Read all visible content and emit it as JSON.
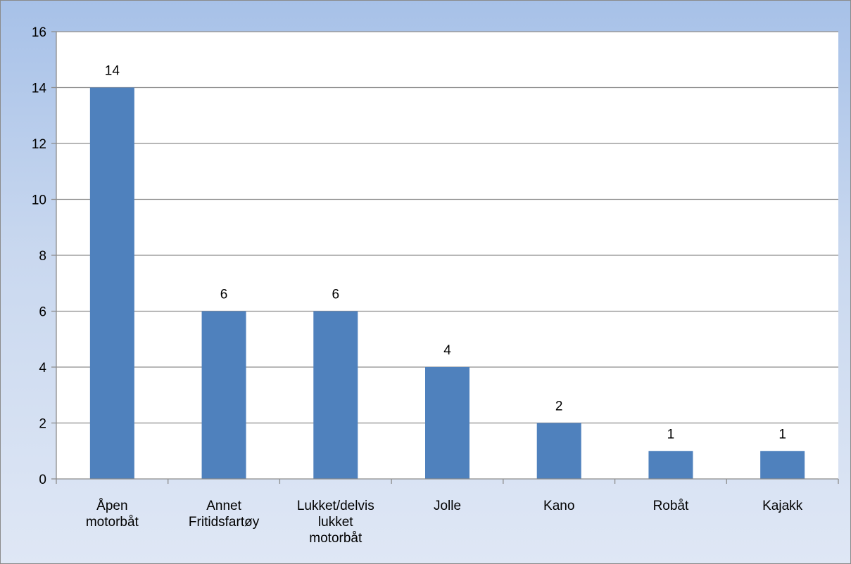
{
  "chart_data": {
    "type": "bar",
    "categories": [
      [
        "Åpen",
        "motorbåt"
      ],
      [
        "Annet",
        "Fritidsfartøy"
      ],
      [
        "Lukket/delvis",
        "lukket",
        "motorbåt"
      ],
      [
        "Jolle"
      ],
      [
        "Kano"
      ],
      [
        "Robåt"
      ],
      [
        "Kajakk"
      ]
    ],
    "values": [
      14,
      6,
      6,
      4,
      2,
      1,
      1
    ],
    "data_labels": [
      "14",
      "6",
      "6",
      "4",
      "2",
      "1",
      "1"
    ],
    "y_ticks": [
      "0",
      "2",
      "4",
      "6",
      "8",
      "10",
      "12",
      "14",
      "16"
    ],
    "ylim": [
      0,
      16
    ],
    "grid": true,
    "legend": "none",
    "colors": {
      "bar": "#4f81bd",
      "plot_area": "#ffffff",
      "gridline": "#8c8c8c",
      "axis": "#8c8c8c"
    }
  }
}
